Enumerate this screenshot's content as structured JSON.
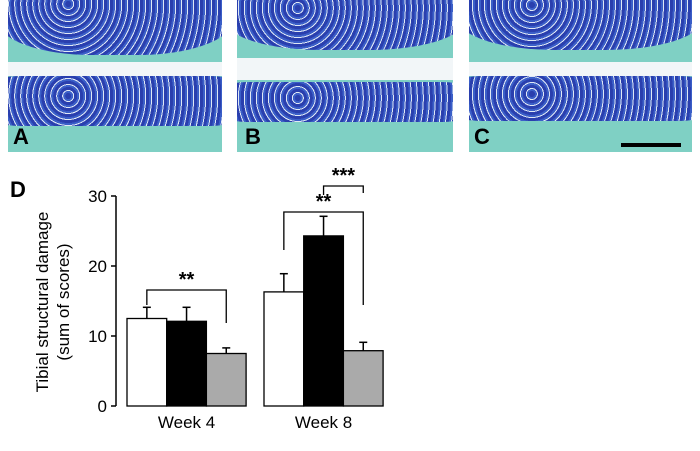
{
  "panels": [
    {
      "label": "A"
    },
    {
      "label": "B"
    },
    {
      "label": "C"
    }
  ],
  "chart_data": {
    "type": "bar",
    "panel_label": "D",
    "ylabel_line1": "Tibial structural damage",
    "ylabel_line2": "(sum of scores)",
    "ylim": [
      0,
      30
    ],
    "yticks": [
      "0",
      "10",
      "20",
      "30"
    ],
    "categories": [
      "Week 4",
      "Week 8"
    ],
    "series": [
      {
        "color": "#ffffff",
        "values": [
          12.5,
          16.3
        ],
        "errors": [
          1.6,
          2.6
        ]
      },
      {
        "color": "#000000",
        "values": [
          12.1,
          24.3
        ],
        "errors": [
          2.0,
          2.8
        ]
      },
      {
        "color": "#aaaaaa",
        "values": [
          7.5,
          7.9
        ],
        "errors": [
          0.8,
          1.2
        ]
      }
    ],
    "annotations": [
      {
        "text": "**",
        "group": "Week 4",
        "from_series": 0,
        "to_series": 2
      },
      {
        "text": "**",
        "group": "Week 8",
        "from_series": 0,
        "to_series": 2
      },
      {
        "text": "***",
        "group": "Week 8",
        "from_series": 1,
        "to_series": 2
      }
    ],
    "grid": false,
    "legend": "none"
  }
}
